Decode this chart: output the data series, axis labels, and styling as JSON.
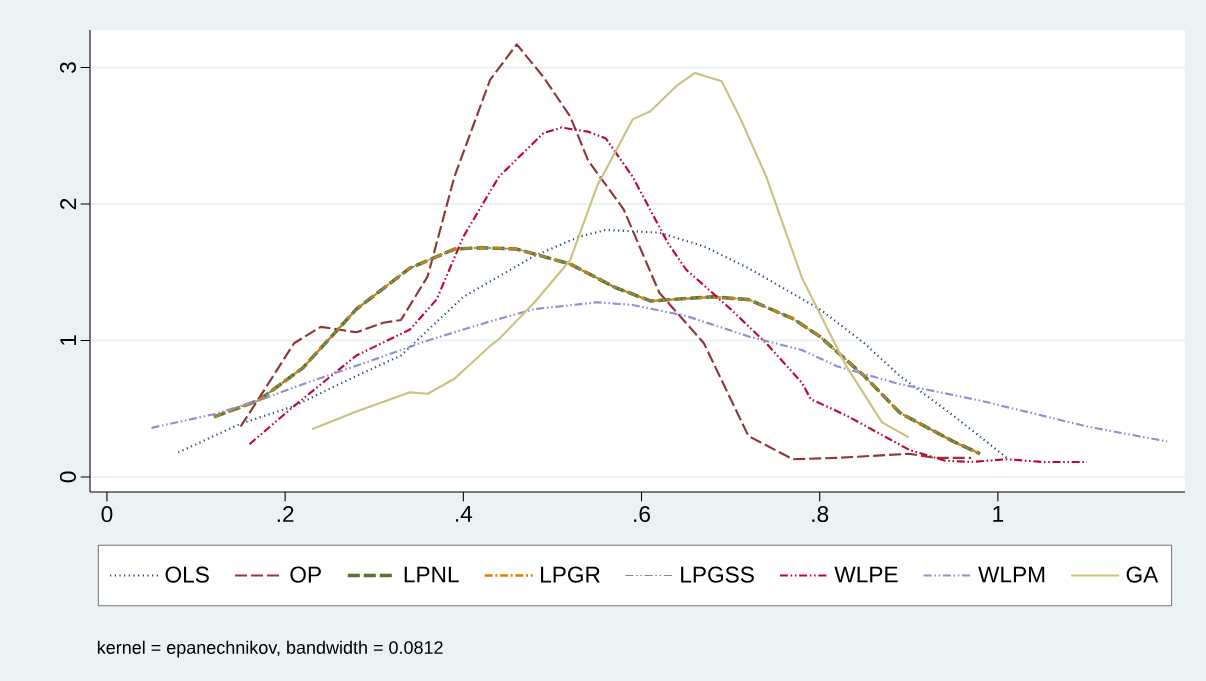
{
  "chart_data": {
    "type": "line",
    "xlim": [
      -0.019,
      1.21
    ],
    "ylim": [
      -0.11,
      3.275
    ],
    "xticks": [
      0,
      {
        "value": 0.2,
        "label": ".2"
      },
      {
        "value": 0.4,
        "label": ".4"
      },
      {
        "value": 0.6,
        "label": ".6"
      },
      {
        "value": 0.8,
        "label": ".8"
      },
      1
    ],
    "yticks": [
      0,
      1,
      2,
      3
    ],
    "grid": "y",
    "legend": "bottom",
    "annotations": [
      "kernel = epanechnikov, bandwidth = 0.0812"
    ],
    "series": [
      {
        "name": "OLS",
        "color": "#1a476f",
        "line_style": "dotted",
        "x": [
          0.08,
          0.15,
          0.21,
          0.28,
          0.33,
          0.4,
          0.48,
          0.53,
          0.56,
          0.62,
          0.67,
          0.72,
          0.8,
          0.85,
          0.89,
          0.95,
          1.01
        ],
        "values": [
          0.18,
          0.39,
          0.52,
          0.74,
          0.89,
          1.32,
          1.62,
          1.76,
          1.81,
          1.79,
          1.69,
          1.53,
          1.23,
          0.98,
          0.74,
          0.45,
          0.14
        ]
      },
      {
        "name": "OP",
        "color": "#90353b",
        "line_style": "dashed",
        "x": [
          0.15,
          0.17,
          0.21,
          0.24,
          0.28,
          0.31,
          0.33,
          0.36,
          0.39,
          0.43,
          0.46,
          0.49,
          0.52,
          0.54,
          0.58,
          0.62,
          0.67,
          0.72,
          0.77,
          0.82,
          0.9,
          0.93,
          0.97
        ],
        "values": [
          0.37,
          0.57,
          0.98,
          1.1,
          1.06,
          1.13,
          1.15,
          1.47,
          2.2,
          2.91,
          3.17,
          2.93,
          2.64,
          2.32,
          1.96,
          1.35,
          0.98,
          0.3,
          0.13,
          0.14,
          0.17,
          0.14,
          0.14
        ]
      },
      {
        "name": "LPNL",
        "color": "#55752f",
        "line_style": "dashed",
        "x": [
          0.12,
          0.17,
          0.22,
          0.28,
          0.34,
          0.39,
          0.42,
          0.46,
          0.52,
          0.57,
          0.61,
          0.68,
          0.72,
          0.77,
          0.8,
          0.85,
          0.89,
          0.95,
          0.98
        ],
        "values": [
          0.44,
          0.56,
          0.8,
          1.23,
          1.53,
          1.67,
          1.68,
          1.67,
          1.56,
          1.39,
          1.29,
          1.32,
          1.3,
          1.16,
          1.03,
          0.74,
          0.47,
          0.26,
          0.17
        ]
      },
      {
        "name": "LPGR",
        "color": "#e37e00",
        "line_style": "dashdot",
        "x": [
          0.12,
          0.17,
          0.22,
          0.28,
          0.34,
          0.39,
          0.42,
          0.46,
          0.52,
          0.57,
          0.61,
          0.68,
          0.72,
          0.77,
          0.8,
          0.85,
          0.89,
          0.95,
          0.98
        ],
        "values": [
          0.44,
          0.56,
          0.8,
          1.23,
          1.53,
          1.67,
          1.68,
          1.67,
          1.56,
          1.39,
          1.29,
          1.32,
          1.3,
          1.16,
          1.03,
          0.74,
          0.47,
          0.26,
          0.17
        ]
      },
      {
        "name": "LPGSS",
        "color": "#6e8e84",
        "line_style": "dashdotdot",
        "x": [
          0.12,
          0.17,
          0.22,
          0.28,
          0.34,
          0.39,
          0.42,
          0.46,
          0.52,
          0.57,
          0.61,
          0.68,
          0.72,
          0.77,
          0.8,
          0.85,
          0.89,
          0.95,
          0.98
        ],
        "values": [
          0.44,
          0.56,
          0.8,
          1.23,
          1.53,
          1.67,
          1.68,
          1.67,
          1.56,
          1.39,
          1.29,
          1.32,
          1.3,
          1.16,
          1.03,
          0.74,
          0.47,
          0.26,
          0.17
        ]
      },
      {
        "name": "WLPE",
        "color": "#c10534",
        "line_style": "dashdotdot",
        "x": [
          0.16,
          0.21,
          0.28,
          0.34,
          0.37,
          0.4,
          0.44,
          0.49,
          0.51,
          0.54,
          0.56,
          0.59,
          0.63,
          0.65,
          0.7,
          0.74,
          0.78,
          0.79,
          0.83,
          0.9,
          0.94,
          0.97,
          1.01,
          1.05,
          1.1
        ],
        "values": [
          0.24,
          0.52,
          0.89,
          1.08,
          1.3,
          1.76,
          2.2,
          2.52,
          2.56,
          2.53,
          2.48,
          2.2,
          1.71,
          1.52,
          1.23,
          0.98,
          0.69,
          0.57,
          0.45,
          0.2,
          0.12,
          0.11,
          0.13,
          0.11,
          0.11
        ]
      },
      {
        "name": "WLPM",
        "color": "#938dd2",
        "line_style": "dashdotdot",
        "x": [
          0.05,
          0.12,
          0.17,
          0.22,
          0.3,
          0.36,
          0.43,
          0.48,
          0.55,
          0.59,
          0.65,
          0.72,
          0.78,
          0.82,
          0.89,
          0.98,
          1.1,
          1.19
        ],
        "values": [
          0.36,
          0.46,
          0.56,
          0.68,
          0.86,
          1.0,
          1.14,
          1.23,
          1.28,
          1.26,
          1.18,
          1.03,
          0.93,
          0.81,
          0.68,
          0.56,
          0.37,
          0.26
        ]
      },
      {
        "name": "GA",
        "color": "#cac27e",
        "line_style": "solid",
        "x": [
          0.23,
          0.28,
          0.34,
          0.36,
          0.39,
          0.43,
          0.44,
          0.48,
          0.52,
          0.55,
          0.59,
          0.61,
          0.64,
          0.66,
          0.69,
          0.71,
          0.74,
          0.78,
          0.83,
          0.87,
          0.9
        ],
        "values": [
          0.35,
          0.48,
          0.62,
          0.61,
          0.72,
          0.96,
          1.01,
          1.28,
          1.59,
          2.13,
          2.62,
          2.68,
          2.87,
          2.96,
          2.9,
          2.64,
          2.2,
          1.46,
          0.81,
          0.4,
          0.29
        ]
      }
    ]
  }
}
